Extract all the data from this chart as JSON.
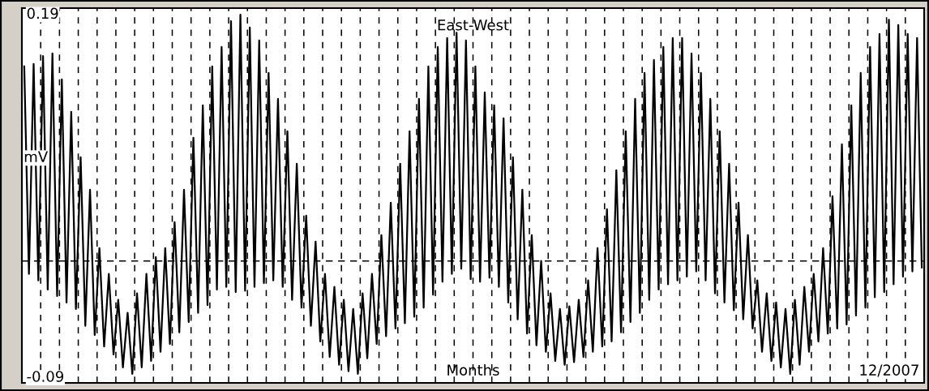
{
  "chart_data": {
    "type": "line",
    "title": "East-West",
    "xlabel": "Months",
    "ylabel": "mV",
    "annotations": [
      "12/2007"
    ],
    "categories": [
      null,
      null,
      null,
      null,
      null,
      null,
      null,
      null,
      null,
      null,
      null,
      null,
      null,
      null,
      null,
      null,
      null,
      null,
      null,
      null,
      null,
      null,
      null,
      null,
      null,
      null,
      null,
      null,
      null,
      null,
      null,
      null,
      null,
      null,
      null,
      null,
      null,
      null,
      null,
      null,
      null,
      null,
      null,
      null,
      null,
      null,
      null,
      null,
      null,
      null,
      null,
      null,
      null,
      null,
      null,
      null,
      null,
      null,
      null,
      null,
      null,
      null,
      null,
      null,
      null,
      null,
      null,
      null,
      null,
      null,
      null,
      null,
      null,
      null,
      null,
      null,
      null,
      null,
      null,
      null,
      null,
      null,
      null,
      null,
      null,
      null,
      null,
      null,
      null,
      null,
      null,
      null,
      null,
      null,
      null,
      null,
      null,
      null,
      null,
      null,
      null,
      null,
      null,
      null,
      null,
      null,
      null,
      null,
      null,
      null,
      null,
      null,
      null,
      null,
      null,
      null,
      null,
      null,
      null,
      null,
      null,
      null,
      null,
      null,
      null,
      null,
      null,
      null,
      null,
      null,
      null,
      null,
      null,
      null,
      null,
      null,
      null,
      null,
      null,
      null,
      null,
      null,
      null,
      null,
      null,
      null,
      null,
      null,
      null,
      null,
      null,
      null,
      null,
      null,
      null,
      null,
      null,
      null,
      null,
      null,
      null,
      null,
      null,
      null,
      null,
      null,
      null,
      null,
      null,
      null,
      null,
      null,
      null,
      null,
      null,
      null,
      null,
      null,
      null,
      null,
      null,
      null,
      null,
      null,
      null,
      null,
      null,
      null,
      null,
      null,
      null,
      null
    ],
    "series": [
      {
        "color": "#000000",
        "values": [
          0.15,
          -0.01,
          0.152,
          -0.015,
          0.158,
          -0.022,
          0.16,
          -0.027,
          0.14,
          -0.032,
          0.115,
          -0.037,
          0.08,
          -0.05,
          0.055,
          -0.057,
          0.01,
          -0.066,
          -0.01,
          -0.072,
          -0.03,
          -0.082,
          -0.04,
          -0.087,
          -0.025,
          -0.082,
          -0.01,
          -0.077,
          0.003,
          -0.07,
          0.01,
          -0.064,
          0.03,
          -0.055,
          0.055,
          -0.047,
          0.095,
          -0.04,
          0.12,
          -0.034,
          0.15,
          -0.022,
          0.165,
          -0.02,
          0.185,
          -0.024,
          0.19,
          -0.023,
          0.18,
          -0.02,
          0.17,
          -0.017,
          0.145,
          -0.015,
          0.125,
          -0.02,
          0.1,
          -0.03,
          0.075,
          -0.036,
          0.035,
          -0.05,
          0.015,
          -0.062,
          -0.01,
          -0.074,
          -0.02,
          -0.08,
          -0.03,
          -0.085,
          -0.037,
          -0.087,
          -0.025,
          -0.075,
          -0.01,
          -0.064,
          0.02,
          -0.058,
          0.045,
          -0.052,
          0.075,
          -0.048,
          0.1,
          -0.043,
          0.125,
          -0.036,
          0.15,
          -0.026,
          0.165,
          -0.016,
          0.172,
          -0.01,
          0.176,
          -0.006,
          0.17,
          -0.014,
          0.15,
          -0.016,
          0.13,
          -0.013,
          0.12,
          -0.02,
          0.11,
          -0.032,
          0.08,
          -0.045,
          0.055,
          -0.056,
          0.02,
          -0.065,
          0.0,
          -0.07,
          -0.025,
          -0.077,
          -0.037,
          -0.08,
          -0.035,
          -0.078,
          -0.03,
          -0.074,
          -0.015,
          -0.07,
          0.01,
          -0.066,
          0.04,
          -0.062,
          0.07,
          -0.055,
          0.1,
          -0.047,
          0.125,
          -0.04,
          0.145,
          -0.03,
          0.155,
          -0.022,
          0.165,
          -0.018,
          0.172,
          -0.015,
          0.172,
          -0.012,
          0.16,
          -0.008,
          0.145,
          -0.015,
          0.125,
          -0.025,
          0.1,
          -0.032,
          0.075,
          -0.038,
          0.045,
          -0.045,
          0.02,
          -0.052,
          -0.015,
          -0.07,
          -0.025,
          -0.077,
          -0.032,
          -0.082,
          -0.037,
          -0.087,
          -0.03,
          -0.08,
          -0.02,
          -0.07,
          -0.01,
          -0.062,
          0.01,
          -0.056,
          0.05,
          -0.052,
          0.09,
          -0.049,
          0.12,
          -0.042,
          0.145,
          -0.036,
          0.165,
          -0.028,
          0.175,
          -0.024,
          0.186,
          -0.018,
          0.182,
          -0.012,
          0.175,
          -0.008,
          0.172,
          -0.005
        ]
      }
    ],
    "ylim": [
      -0.094,
      0.195
    ],
    "yticks": [
      -0.09,
      0.19
    ],
    "tick_labels": "y",
    "grid": "x",
    "line_style": "solid",
    "ref_lines": [
      {
        "axis": "y",
        "value": 0,
        "label": null,
        "color": "#000000",
        "line_style": "dashed"
      }
    ]
  }
}
